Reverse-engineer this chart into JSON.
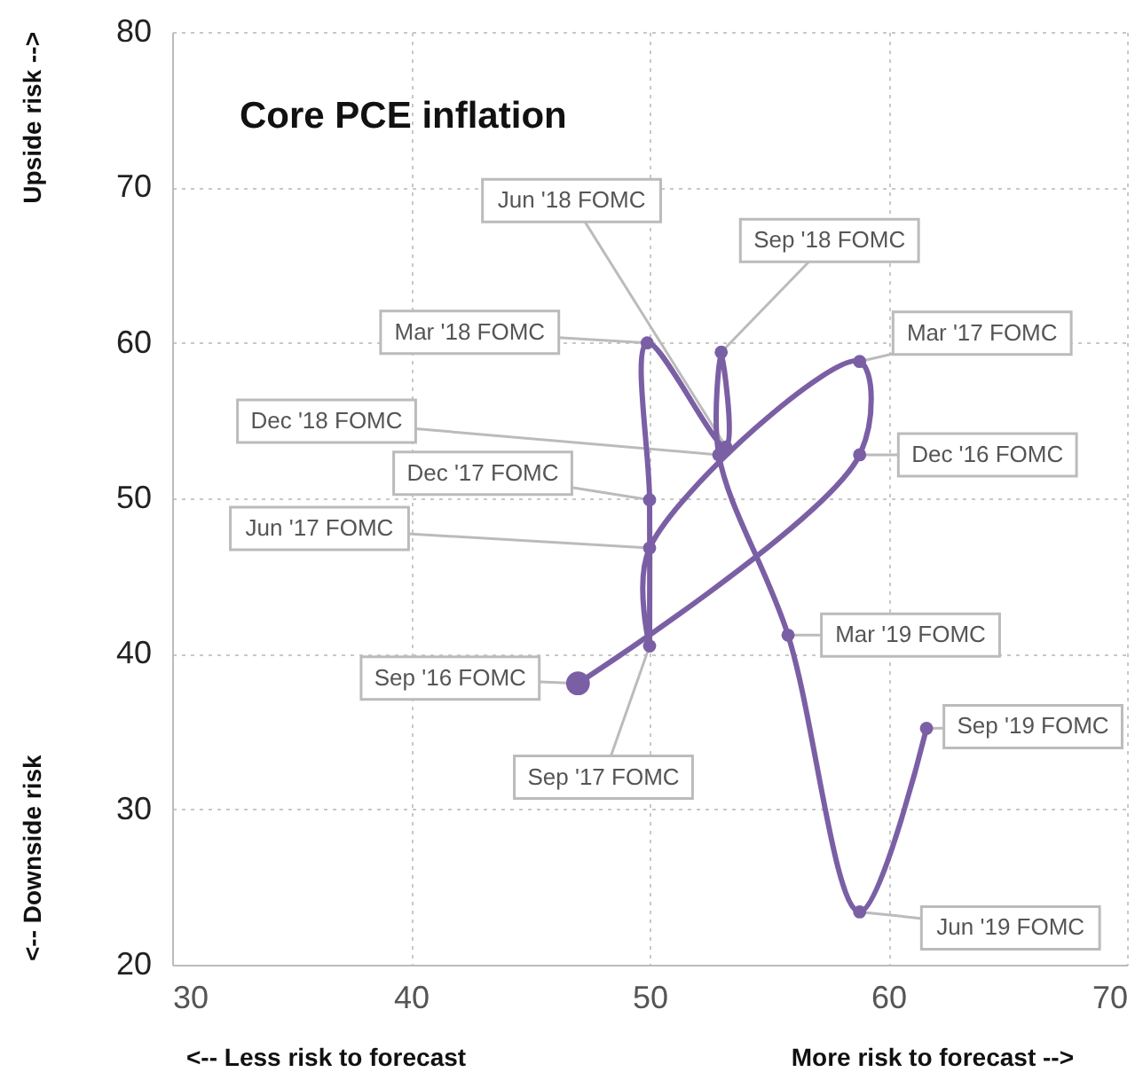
{
  "chart_data": {
    "type": "line",
    "title": "Core PCE inflation",
    "xlabel": "<-- Less risk to forecast",
    "ylabel": "<-- Downside risk",
    "annotations": [
      "More risk to forecast -->",
      "Upside risk -->",
      {
        "text": "Sep '16 FOMC",
        "x": 47.0,
        "y": 38.1
      },
      {
        "text": "Dec '16 FOMC",
        "x": 58.8,
        "y": 52.8
      },
      {
        "text": "Mar '17 FOMC",
        "x": 58.8,
        "y": 58.8
      },
      {
        "text": "Jun '17 FOMC",
        "x": 50.0,
        "y": 46.8
      },
      {
        "text": "Sep '17 FOMC",
        "x": 50.0,
        "y": 40.5
      },
      {
        "text": "Dec '17 FOMC",
        "x": 50.0,
        "y": 49.9
      },
      {
        "text": "Mar '18 FOMC",
        "x": 49.9,
        "y": 60.0
      },
      {
        "text": "Jun '18 FOMC",
        "x": 53.2,
        "y": 53.3
      },
      {
        "text": "Sep '18 FOMC",
        "x": 53.0,
        "y": 59.4
      },
      {
        "text": "Dec '18 FOMC",
        "x": 52.9,
        "y": 52.8
      },
      {
        "text": "Mar '19 FOMC",
        "x": 55.8,
        "y": 41.2
      },
      {
        "text": "Jun '19 FOMC",
        "x": 58.8,
        "y": 23.4
      },
      {
        "text": "Sep '19 FOMC",
        "x": 61.6,
        "y": 35.2
      }
    ],
    "series": [
      {
        "color": "#7b5fa5",
        "x": [
          47.0,
          58.8,
          58.8,
          50.0,
          50.0,
          50.0,
          49.9,
          53.2,
          53.0,
          52.9,
          55.8,
          58.8,
          61.6
        ],
        "values": [
          38.1,
          52.8,
          58.8,
          46.8,
          40.5,
          49.9,
          60.0,
          53.3,
          59.4,
          52.8,
          41.2,
          23.4,
          35.2
        ]
      }
    ],
    "xlim": [
      30,
      70
    ],
    "ylim": [
      20,
      80
    ],
    "xticks": [
      30,
      40,
      50,
      60,
      70
    ],
    "yticks": [
      20,
      30,
      40,
      50,
      60,
      70,
      80
    ],
    "grid": true,
    "marker": "circle"
  }
}
